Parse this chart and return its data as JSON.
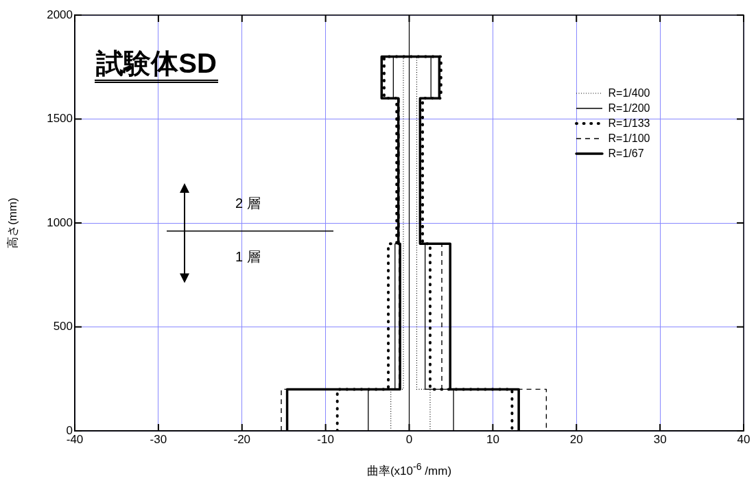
{
  "chart_data": {
    "type": "line",
    "title": "試験体SD",
    "xlabel": "曲率(x10$^{-6}$ /mm)",
    "ylabel": "高さ(mm)",
    "xlim": [
      -40,
      40
    ],
    "xticks": [
      -40,
      -30,
      -20,
      -10,
      0,
      10,
      20,
      30,
      40
    ],
    "ylim": [
      0,
      2000
    ],
    "yticks": [
      0,
      500,
      1000,
      1500,
      2000
    ],
    "grid": true,
    "legend": "top right",
    "marker": "none",
    "series": [
      {
        "name": "R=1/400",
        "color": "#000000",
        "line_style": "dotted",
        "x": [
          -2.2,
          -2.2,
          -0.7,
          -0.7,
          0.9,
          0.9,
          2.5,
          2.5
        ],
        "values": [
          0,
          200,
          200,
          1800,
          1800,
          200,
          200,
          0
        ]
      },
      {
        "name": "R=1/200",
        "color": "#000000",
        "line_style": "solid",
        "x": [
          -4.9,
          -4.9,
          -1.7,
          -1.7,
          -1.3,
          -1.3,
          -1.9,
          -1.9,
          2.6,
          2.6,
          1.3,
          1.3,
          1.9,
          1.9,
          5.3,
          5.3
        ],
        "values": [
          0,
          200,
          200,
          900,
          900,
          1600,
          1600,
          1800,
          1800,
          1600,
          1600,
          900,
          900,
          200,
          200,
          0
        ]
      },
      {
        "name": "R=1/133",
        "color": "#000000",
        "line_style": "dotted",
        "x": [
          -8.6,
          -8.6,
          -2.5,
          -2.5,
          -1.5,
          -1.5,
          -3.0,
          -3.0,
          3.8,
          3.8,
          1.6,
          1.6,
          2.5,
          2.5,
          12.3,
          12.3
        ],
        "values": [
          0,
          200,
          200,
          900,
          900,
          1600,
          1600,
          1800,
          1800,
          1600,
          1600,
          900,
          900,
          200,
          200,
          0
        ]
      },
      {
        "name": "R=1/100",
        "color": "#000000",
        "line_style": "dashed",
        "x": [
          -15.3,
          -15.3,
          -1.2,
          -1.2,
          -3.3,
          -3.3,
          3.6,
          3.6,
          1.3,
          1.3,
          3.9,
          3.9,
          16.4,
          16.4
        ],
        "values": [
          0,
          200,
          200,
          1600,
          1600,
          1800,
          1800,
          1600,
          1600,
          900,
          900,
          200,
          200,
          0
        ]
      },
      {
        "name": "R=1/67",
        "color": "#000000",
        "line_style": "solid",
        "x": [
          -14.6,
          -14.6,
          -1.1,
          -1.1,
          -1.3,
          -1.3,
          -3.3,
          -3.3,
          3.6,
          3.6,
          1.3,
          1.3,
          4.9,
          4.9,
          13.1,
          13.1
        ],
        "values": [
          0,
          200,
          200,
          900,
          900,
          1600,
          1600,
          1800,
          1800,
          1600,
          1600,
          900,
          900,
          200,
          200,
          0
        ]
      }
    ],
    "ref_lines": [
      {
        "axis": "x",
        "value": 0,
        "color": "#000000",
        "line_style": "solid"
      }
    ],
    "annotations": [
      "2 層",
      "1 層"
    ]
  }
}
